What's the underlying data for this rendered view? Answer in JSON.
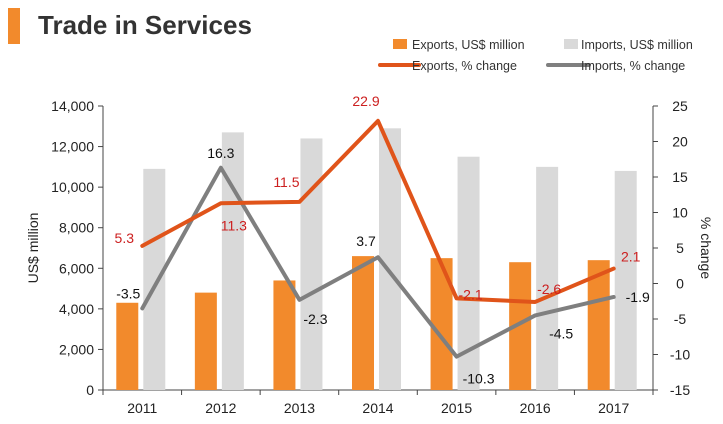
{
  "header": {
    "title": "Trade in Services"
  },
  "colors": {
    "exports_bar": "#f28a2c",
    "imports_bar": "#d9d9d9",
    "exports_line": "#e0541a",
    "imports_line": "#7f7f7f",
    "exports_label": "#cc1f1f",
    "imports_label": "#111111",
    "accent": "#f28a2c"
  },
  "chart_data": {
    "type": "bar+line",
    "title": "Trade in Services",
    "categories": [
      "2011",
      "2012",
      "2013",
      "2014",
      "2015",
      "2016",
      "2017"
    ],
    "ylabel": "US$ million",
    "y2label": "% change",
    "ylim": [
      0,
      14000
    ],
    "y2lim": [
      -15,
      25
    ],
    "yticks": [
      "0",
      "2,000",
      "4,000",
      "6,000",
      "8,000",
      "10,000",
      "12,000",
      "14,000"
    ],
    "y2ticks": [
      "-15",
      "-10",
      "-5",
      "0",
      "5",
      "10",
      "15",
      "20",
      "25"
    ],
    "legend": {
      "exports_bar": "Exports, US$ million",
      "imports_bar": "Imports, US$ million",
      "exports_line": "Exports, % change",
      "imports_line": "Imports, % change"
    },
    "series": [
      {
        "name": "Exports, US$ million",
        "kind": "bar",
        "values": [
          4300,
          4800,
          5400,
          6600,
          6500,
          6300,
          6400
        ]
      },
      {
        "name": "Imports, US$ million",
        "kind": "bar",
        "values": [
          10900,
          12700,
          12400,
          12900,
          11500,
          11000,
          10800
        ]
      },
      {
        "name": "Exports, % change",
        "kind": "line",
        "axis": "right",
        "values": [
          5.3,
          11.3,
          11.5,
          22.9,
          -2.1,
          -2.6,
          2.1
        ],
        "labels": [
          "5.3",
          "11.3",
          "11.5",
          "22.9",
          "-2.1",
          "-2.6",
          "2.1"
        ]
      },
      {
        "name": "Imports, % change",
        "kind": "line",
        "axis": "right",
        "values": [
          -3.5,
          16.3,
          -2.3,
          3.7,
          -10.3,
          -4.5,
          -1.9
        ],
        "labels": [
          "-3.5",
          "16.3",
          "-2.3",
          "3.7",
          "-10.3",
          "-4.5",
          "-1.9"
        ]
      }
    ]
  }
}
